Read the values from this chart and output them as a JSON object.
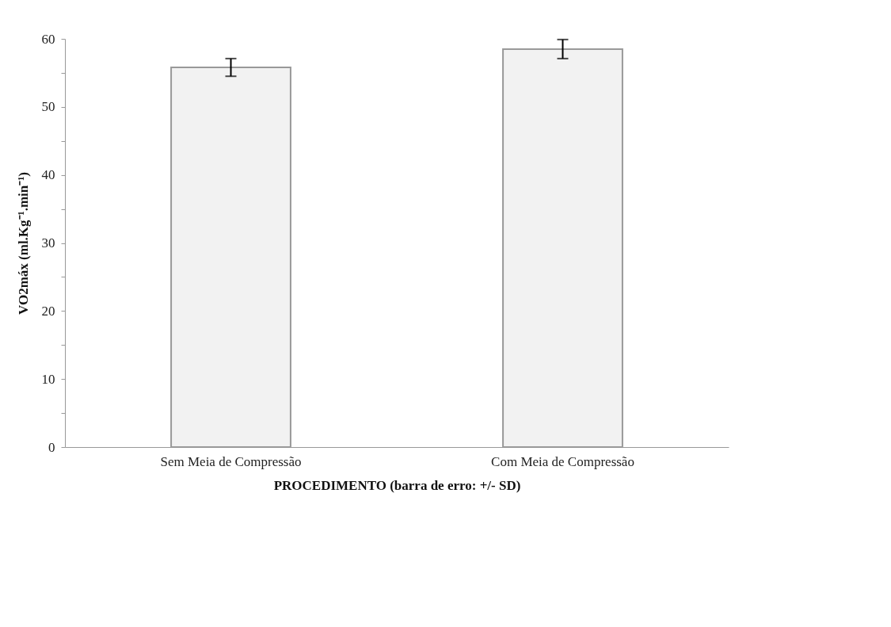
{
  "chart_data": {
    "type": "bar",
    "xlabel": "PROCEDIMENTO (barra de erro: +/- SD)",
    "ylabel": "VO2máx (ml.Kg⁻¹.min⁻¹)",
    "categories": [
      "Sem Meia de Compressão",
      "Com Meia de Compressão"
    ],
    "series": [
      {
        "color": "#f2f2f2",
        "values": [
          55.8,
          58.5
        ],
        "errors": [
          1.3,
          1.4
        ]
      }
    ],
    "ylim": [
      0,
      60
    ],
    "yticks": [
      0,
      {
        "value": 5,
        "label": null
      },
      10,
      {
        "value": 15,
        "label": null
      },
      20,
      {
        "value": 25,
        "label": null
      },
      30,
      {
        "value": 35,
        "label": null
      },
      40,
      {
        "value": 45,
        "label": null
      },
      50,
      {
        "value": 55,
        "label": null
      },
      60
    ],
    "grid": false
  }
}
